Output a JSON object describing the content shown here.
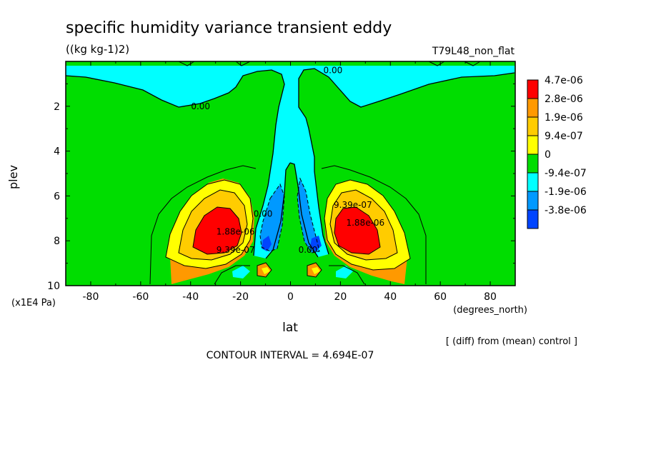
{
  "chart_data": {
    "type": "heatmap",
    "title": "specific humidity variance transient eddy",
    "subtitle": "((kg kg-1)2)",
    "dataset": "T79L48_non_flat",
    "xlabel": "lat",
    "x_units": "(degrees_north)",
    "ylabel": "plev",
    "y_units": "(x1E4 Pa)",
    "xlim": [
      -90,
      90
    ],
    "ylim": [
      10,
      0
    ],
    "x_ticks": [
      -80,
      -60,
      -40,
      -20,
      0,
      20,
      40,
      60,
      80
    ],
    "y_ticks": [
      2,
      4,
      6,
      8,
      10
    ],
    "x_tick_labels": [
      "-80",
      "-60",
      "-40",
      "-20",
      "0",
      "20",
      "40",
      "60",
      "80"
    ],
    "y_tick_labels": [
      "2",
      "4",
      "6",
      "8",
      "10"
    ],
    "note": "[ (diff) from (mean) control ]",
    "contour_interval": "CONTOUR INTERVAL = 4.694E-07",
    "legend": {
      "placement": "right",
      "entries": [
        {
          "label": "4.7e-06",
          "color": "#ff0000"
        },
        {
          "label": "2.8e-06",
          "color": "#ff9900"
        },
        {
          "label": "1.9e-06",
          "color": "#ffcc00"
        },
        {
          "label": "9.4e-07",
          "color": "#ffff00"
        },
        {
          "label": "0",
          "color": "#00dd00"
        },
        {
          "label": "-9.4e-07",
          "color": "#00ffff"
        },
        {
          "label": "-1.9e-06",
          "color": "#0099ff"
        },
        {
          "label": "-3.8e-06",
          "color": "#0044ff"
        }
      ]
    },
    "contour_labels": [
      {
        "text": "0.00",
        "lat": 10,
        "plev": 0.05
      },
      {
        "text": "0.00",
        "lat": 17,
        "plev": 0.4
      },
      {
        "text": "0.00",
        "lat": -36,
        "plev": 2.0
      },
      {
        "text": "0.00",
        "lat": -11,
        "plev": 6.8
      },
      {
        "text": "9.39e-07",
        "lat": 25,
        "plev": 6.4
      },
      {
        "text": "1.88e-06",
        "lat": 30,
        "plev": 7.2
      },
      {
        "text": "1.88e-06",
        "lat": -22,
        "plev": 7.6
      },
      {
        "text": "9.39e-07",
        "lat": -22,
        "plev": 8.4
      },
      {
        "text": "0.00",
        "lat": 7,
        "plev": 8.4
      }
    ]
  }
}
